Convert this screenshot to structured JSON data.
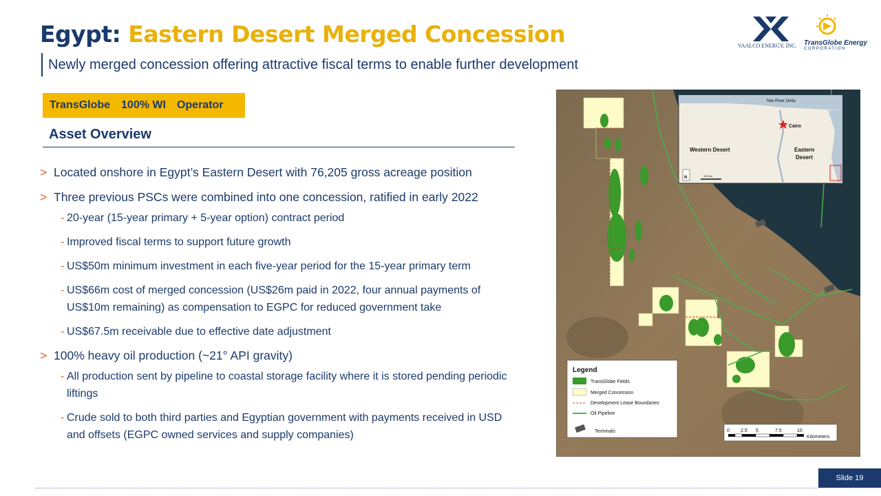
{
  "header": {
    "title_part1": "Egypt:",
    "title_part2": "Eastern Desert Merged Concession",
    "subtitle": "Newly merged concession offering attractive fiscal terms to enable further development"
  },
  "logos": {
    "vaalco": "VAALCO ENERGY, INC.",
    "transglobe": "TransGlobe Energy",
    "transglobe_sub": "CORPORATION"
  },
  "badge": {
    "company": "TransGlobe",
    "wi": "100% WI",
    "role": "Operator"
  },
  "asset_overview": "Asset Overview",
  "bullets": {
    "b1": "Located onshore in Egypt’s Eastern Desert with 76,205 gross acreage position",
    "b2": "Three previous PSCs were combined into one concession, ratified in early 2022",
    "b2_sub": [
      "20-year (15-year primary + 5-year option) contract period",
      "Improved fiscal terms to support future growth",
      "US$50m minimum investment in each five-year period for the 15-year primary term",
      "US$66m cost of merged concession (US$26m paid in 2022, four annual payments of US$10m remaining) as compensation to EGPC for reduced government take",
      "US$67.5m receivable due to effective date adjustment"
    ],
    "b3": "100% heavy oil production (~21° API gravity)",
    "b3_sub": [
      "All production sent by pipeline to coastal storage facility where it is stored pending periodic liftings",
      "Crude sold to both third parties and Egyptian government with payments received in USD and offsets (EGPC owned services and supply companies)"
    ],
    "marker": ">",
    "dash": "-"
  },
  "map": {
    "inset": {
      "nile_delta": "Nile River Delta",
      "cairo": "Cairo",
      "western_desert": "Western Desert",
      "eastern_desert_1": "Eastern",
      "eastern_desert_2": "Desert",
      "north": "N",
      "scale": "100 km"
    },
    "legend": {
      "title": "Legend",
      "items": [
        "TransGlobe Fields",
        "Merged Concession",
        "Development Lease Boundaries",
        "Oil Pipeline",
        "Terminals"
      ]
    },
    "scalebar": {
      "ticks": [
        "0",
        "2.5",
        "5",
        "7.5",
        "10"
      ],
      "unit": "Kilometers"
    },
    "colors": {
      "field": "#3a9a2a",
      "concession": "#fdfbc8",
      "pipeline": "#4caf50",
      "boundary": "#b5472c",
      "desert": "#8a7457",
      "sea": "#1f3540"
    }
  },
  "footer": {
    "slide": "Slide 19"
  }
}
